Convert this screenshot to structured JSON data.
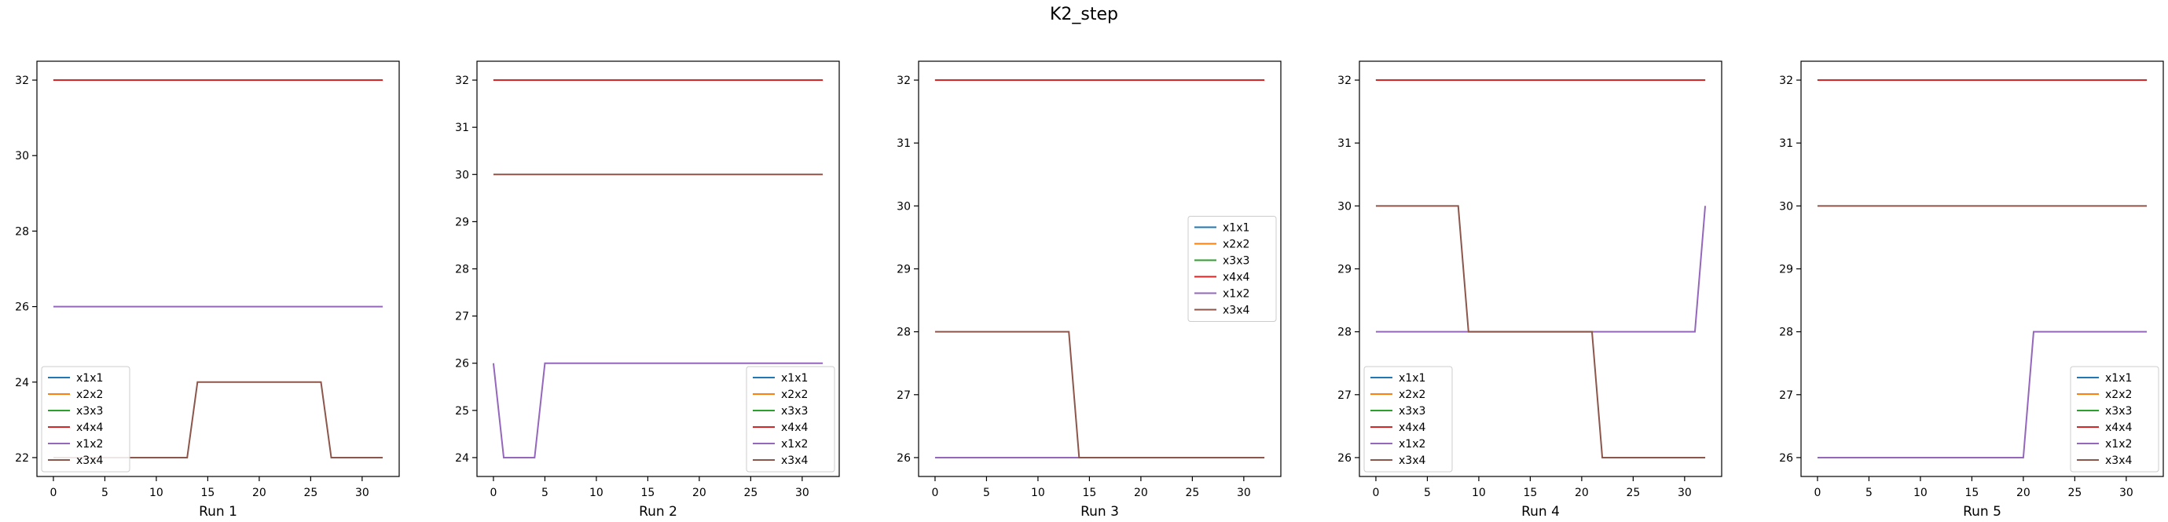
{
  "title": "K2_step",
  "colors": {
    "x1x1": "#1f77b4",
    "x2x2": "#ff7f0e",
    "x3x3": "#2ca02c",
    "x4x4": "#d62728",
    "x1x2": "#9467bd",
    "x3x4": "#8c564b"
  },
  "chart_data": [
    {
      "type": "line",
      "xlabel": "Run 1",
      "ylabel": "",
      "xlim": [
        -1.6,
        33.6
      ],
      "ylim": [
        21.5,
        32.5
      ],
      "xticks": [
        0,
        5,
        10,
        15,
        20,
        25,
        30
      ],
      "yticks": [
        22,
        24,
        26,
        28,
        30,
        32
      ],
      "legend": "lower-left",
      "grid": false,
      "series": [
        {
          "name": "x1x1",
          "x": [
            0,
            32
          ],
          "y": [
            32,
            32
          ]
        },
        {
          "name": "x2x2",
          "x": [
            0,
            32
          ],
          "y": [
            32,
            32
          ]
        },
        {
          "name": "x3x3",
          "x": [
            0,
            32
          ],
          "y": [
            32,
            32
          ]
        },
        {
          "name": "x4x4",
          "x": [
            0,
            32
          ],
          "y": [
            32,
            32
          ]
        },
        {
          "name": "x1x2",
          "x": [
            0,
            32
          ],
          "y": [
            26,
            26
          ]
        },
        {
          "name": "x3x4",
          "x": [
            0,
            13,
            14,
            26,
            27,
            32
          ],
          "y": [
            22,
            22,
            24,
            24,
            22,
            22
          ]
        }
      ]
    },
    {
      "type": "line",
      "xlabel": "Run 2",
      "ylabel": "",
      "xlim": [
        -1.6,
        33.6
      ],
      "ylim": [
        23.6,
        32.4
      ],
      "xticks": [
        0,
        5,
        10,
        15,
        20,
        25,
        30
      ],
      "yticks": [
        24,
        25,
        26,
        27,
        28,
        29,
        30,
        31,
        32
      ],
      "legend": "lower-right",
      "grid": false,
      "series": [
        {
          "name": "x1x1",
          "x": [
            0,
            32
          ],
          "y": [
            32,
            32
          ]
        },
        {
          "name": "x2x2",
          "x": [
            0,
            32
          ],
          "y": [
            32,
            32
          ]
        },
        {
          "name": "x3x3",
          "x": [
            0,
            32
          ],
          "y": [
            32,
            32
          ]
        },
        {
          "name": "x4x4",
          "x": [
            0,
            32
          ],
          "y": [
            32,
            32
          ]
        },
        {
          "name": "x1x2",
          "x": [
            0,
            1,
            4,
            5,
            32
          ],
          "y": [
            26,
            24,
            24,
            26,
            26
          ]
        },
        {
          "name": "x3x4",
          "x": [
            0,
            32
          ],
          "y": [
            30,
            30
          ]
        }
      ]
    },
    {
      "type": "line",
      "xlabel": "Run 3",
      "ylabel": "",
      "xlim": [
        -1.6,
        33.6
      ],
      "ylim": [
        25.7,
        32.3
      ],
      "xticks": [
        0,
        5,
        10,
        15,
        20,
        25,
        30
      ],
      "yticks": [
        26,
        27,
        28,
        29,
        30,
        31,
        32
      ],
      "legend": "center-right",
      "grid": false,
      "series": [
        {
          "name": "x1x1",
          "x": [
            0,
            32
          ],
          "y": [
            32,
            32
          ]
        },
        {
          "name": "x2x2",
          "x": [
            0,
            32
          ],
          "y": [
            32,
            32
          ]
        },
        {
          "name": "x3x3",
          "x": [
            0,
            32
          ],
          "y": [
            32,
            32
          ]
        },
        {
          "name": "x4x4",
          "x": [
            0,
            32
          ],
          "y": [
            32,
            32
          ]
        },
        {
          "name": "x1x2",
          "x": [
            0,
            32
          ],
          "y": [
            26,
            26
          ]
        },
        {
          "name": "x3x4",
          "x": [
            0,
            13,
            14,
            32
          ],
          "y": [
            28,
            28,
            26,
            26
          ]
        }
      ]
    },
    {
      "type": "line",
      "xlabel": "Run 4",
      "ylabel": "",
      "xlim": [
        -1.6,
        33.6
      ],
      "ylim": [
        25.7,
        32.3
      ],
      "xticks": [
        0,
        5,
        10,
        15,
        20,
        25,
        30
      ],
      "yticks": [
        26,
        27,
        28,
        29,
        30,
        31,
        32
      ],
      "legend": "lower-left",
      "grid": false,
      "series": [
        {
          "name": "x1x1",
          "x": [
            0,
            32
          ],
          "y": [
            32,
            32
          ]
        },
        {
          "name": "x2x2",
          "x": [
            0,
            32
          ],
          "y": [
            32,
            32
          ]
        },
        {
          "name": "x3x3",
          "x": [
            0,
            32
          ],
          "y": [
            32,
            32
          ]
        },
        {
          "name": "x4x4",
          "x": [
            0,
            32
          ],
          "y": [
            32,
            32
          ]
        },
        {
          "name": "x1x2",
          "x": [
            0,
            31,
            32
          ],
          "y": [
            28,
            28,
            30
          ]
        },
        {
          "name": "x3x4",
          "x": [
            0,
            8,
            9,
            21,
            22,
            32
          ],
          "y": [
            30,
            30,
            28,
            28,
            26,
            26
          ]
        }
      ]
    },
    {
      "type": "line",
      "xlabel": "Run 5",
      "ylabel": "",
      "xlim": [
        -1.6,
        33.6
      ],
      "ylim": [
        25.7,
        32.3
      ],
      "xticks": [
        0,
        5,
        10,
        15,
        20,
        25,
        30
      ],
      "yticks": [
        26,
        27,
        28,
        29,
        30,
        31,
        32
      ],
      "legend": "lower-right",
      "grid": false,
      "series": [
        {
          "name": "x1x1",
          "x": [
            0,
            32
          ],
          "y": [
            32,
            32
          ]
        },
        {
          "name": "x2x2",
          "x": [
            0,
            32
          ],
          "y": [
            32,
            32
          ]
        },
        {
          "name": "x3x3",
          "x": [
            0,
            32
          ],
          "y": [
            32,
            32
          ]
        },
        {
          "name": "x4x4",
          "x": [
            0,
            32
          ],
          "y": [
            32,
            32
          ]
        },
        {
          "name": "x1x2",
          "x": [
            0,
            20,
            21,
            32
          ],
          "y": [
            26,
            26,
            28,
            28
          ]
        },
        {
          "name": "x3x4",
          "x": [
            0,
            32
          ],
          "y": [
            30,
            30
          ]
        }
      ]
    }
  ]
}
